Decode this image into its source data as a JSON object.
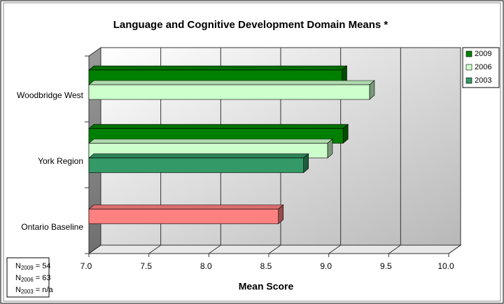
{
  "chart_data": {
    "type": "bar",
    "orientation": "horizontal",
    "title": "Language and Cognitive Development Domain Means *",
    "xlabel": "Mean Score",
    "categories": [
      "Woodbridge West",
      "York Region",
      "Ontario Baseline"
    ],
    "series": [
      {
        "name": "2009",
        "color": "#008000",
        "values": [
          9.11,
          9.12,
          null
        ]
      },
      {
        "name": "2006",
        "color": "#ccffcc",
        "values": [
          9.34,
          8.99,
          null
        ]
      },
      {
        "name": "2003",
        "color": "#339966",
        "values": [
          null,
          8.79,
          null
        ]
      },
      {
        "color": "#ff8080",
        "values": [
          null,
          null,
          8.58
        ]
      }
    ],
    "xlim": [
      7,
      10
    ],
    "xticks": [
      {
        "value": 7,
        "label": "7.0"
      },
      {
        "value": 7.5,
        "label": "7.5"
      },
      {
        "value": 8,
        "label": "8.0"
      },
      {
        "value": 8.5,
        "label": "8.5"
      },
      {
        "value": 9,
        "label": "9.0"
      },
      {
        "value": 9.5,
        "label": "9.5"
      },
      {
        "value": 10,
        "label": "10.0"
      }
    ],
    "grid": true,
    "legend": "right",
    "notes": [
      {
        "symbol": "N",
        "year": "2009",
        "text": " = 54"
      },
      {
        "symbol": "N",
        "year": "2006",
        "text": " = 63"
      },
      {
        "symbol": "N",
        "year": "2003",
        "text": " = n/a"
      }
    ]
  }
}
